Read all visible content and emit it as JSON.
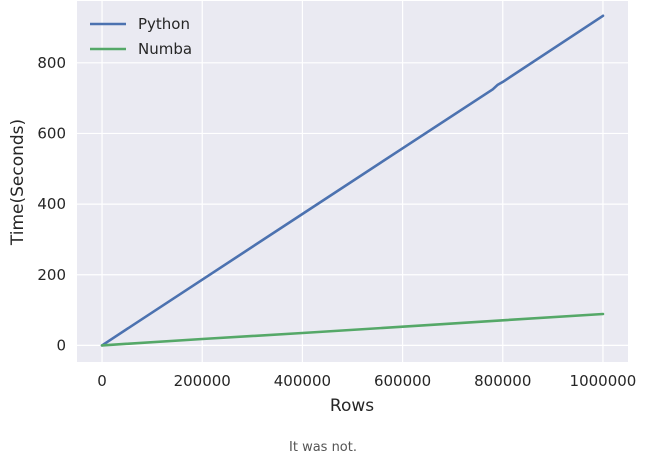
{
  "caption": "It was not.",
  "chart_data": {
    "type": "line",
    "xlabel": "Rows",
    "ylabel": "Time(Seconds)",
    "xlim": [
      -50000,
      1050000
    ],
    "ylim": [
      -47,
      975
    ],
    "xticks": [
      0,
      200000,
      400000,
      600000,
      800000,
      1000000
    ],
    "xtick_labels": [
      "0",
      "200000",
      "400000",
      "600000",
      "800000",
      "1000000"
    ],
    "yticks": [
      0,
      200,
      400,
      600,
      800
    ],
    "ytick_labels": [
      "0",
      "200",
      "400",
      "600",
      "800"
    ],
    "grid": true,
    "legend_position": "top-left",
    "background": "#EAEAF2",
    "series": [
      {
        "name": "Python",
        "color": "#4C72B0",
        "x": [
          0,
          200000,
          400000,
          600000,
          780000,
          790000,
          800000,
          1000000
        ],
        "y": [
          0,
          186,
          372,
          558,
          725,
          738,
          746,
          933
        ]
      },
      {
        "name": "Numba",
        "color": "#55A868",
        "x": [
          0,
          200000,
          400000,
          600000,
          800000,
          1000000
        ],
        "y": [
          0,
          18,
          35,
          53,
          71,
          89
        ]
      }
    ]
  }
}
